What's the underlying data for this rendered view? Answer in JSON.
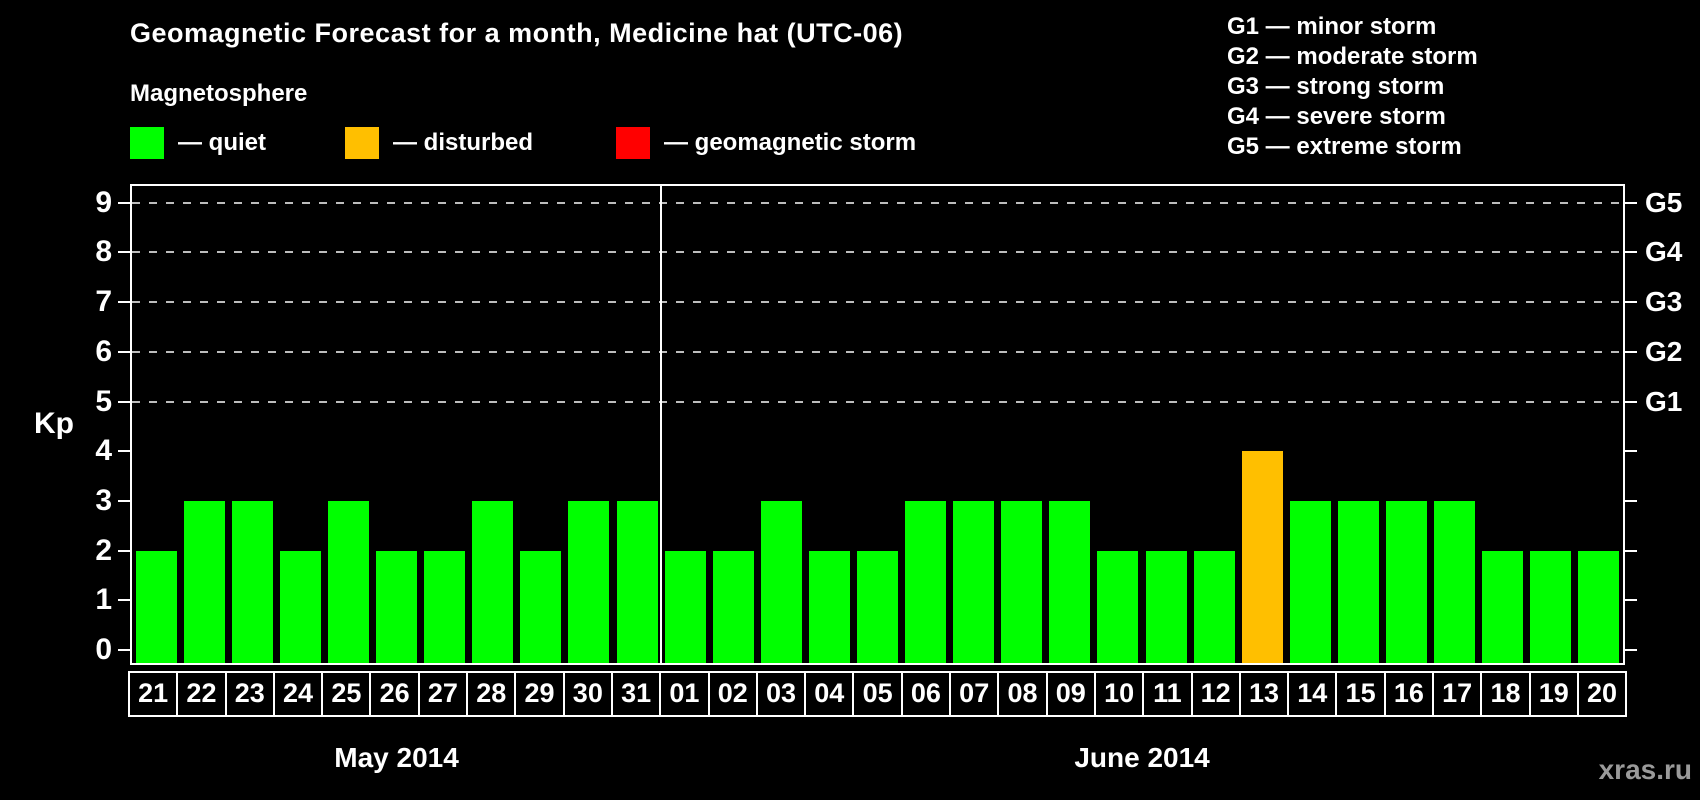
{
  "title": "Geomagnetic Forecast for a month, Medicine hat (UTC-06)",
  "watermark": "xras.ru",
  "magnetosphere_legend": {
    "title": "Magnetosphere",
    "items": [
      {
        "label": "— quiet",
        "swatch_color": "#00ff00"
      },
      {
        "label": "— disturbed",
        "swatch_color": "#ffbf00"
      },
      {
        "label": "— geomagnetic storm",
        "swatch_color": "#ff0000"
      }
    ]
  },
  "storm_scale_legend": {
    "items": [
      "G1 — minor storm",
      "G2 — moderate storm",
      "G3 — strong storm",
      "G4 — severe storm",
      "G5 — extreme storm"
    ]
  },
  "chart_data": {
    "type": "bar",
    "title": "Geomagnetic Forecast for a month, Medicine hat (UTC-06)",
    "ylabel": "Kp",
    "ylim": [
      0,
      9.4
    ],
    "yticks_left": [
      "0",
      "1",
      "2",
      "3",
      "4",
      "5",
      "6",
      "7",
      "8",
      "9"
    ],
    "yticks_right": [
      {
        "value": 5,
        "label": "G1"
      },
      {
        "value": 6,
        "label": "G2"
      },
      {
        "value": 7,
        "label": "G3"
      },
      {
        "value": 8,
        "label": "G4"
      },
      {
        "value": 9,
        "label": "G5"
      }
    ],
    "dashed_gridlines_at": [
      5,
      6,
      7,
      8,
      9
    ],
    "grid": true,
    "legend_position": "top-left",
    "status_colors": {
      "quiet": "#00ff00",
      "disturbed": "#ffbf00",
      "storm": "#ff0000"
    },
    "months": [
      {
        "label": "May 2014",
        "days": [
          "21",
          "22",
          "23",
          "24",
          "25",
          "26",
          "27",
          "28",
          "29",
          "30",
          "31"
        ],
        "values": [
          2,
          3,
          3,
          2,
          3,
          2,
          2,
          3,
          2,
          3,
          3
        ],
        "statuses": [
          "quiet",
          "quiet",
          "quiet",
          "quiet",
          "quiet",
          "quiet",
          "quiet",
          "quiet",
          "quiet",
          "quiet",
          "quiet"
        ]
      },
      {
        "label": "June 2014",
        "days": [
          "01",
          "02",
          "03",
          "04",
          "05",
          "06",
          "07",
          "08",
          "09",
          "10",
          "11",
          "12",
          "13",
          "14",
          "15",
          "16",
          "17",
          "18",
          "19",
          "20"
        ],
        "values": [
          2,
          2,
          3,
          2,
          2,
          3,
          3,
          3,
          3,
          2,
          2,
          2,
          4,
          3,
          3,
          3,
          3,
          2,
          2,
          2
        ],
        "statuses": [
          "quiet",
          "quiet",
          "quiet",
          "quiet",
          "quiet",
          "quiet",
          "quiet",
          "quiet",
          "quiet",
          "quiet",
          "quiet",
          "quiet",
          "disturbed",
          "quiet",
          "quiet",
          "quiet",
          "quiet",
          "quiet",
          "quiet",
          "quiet"
        ]
      }
    ]
  }
}
